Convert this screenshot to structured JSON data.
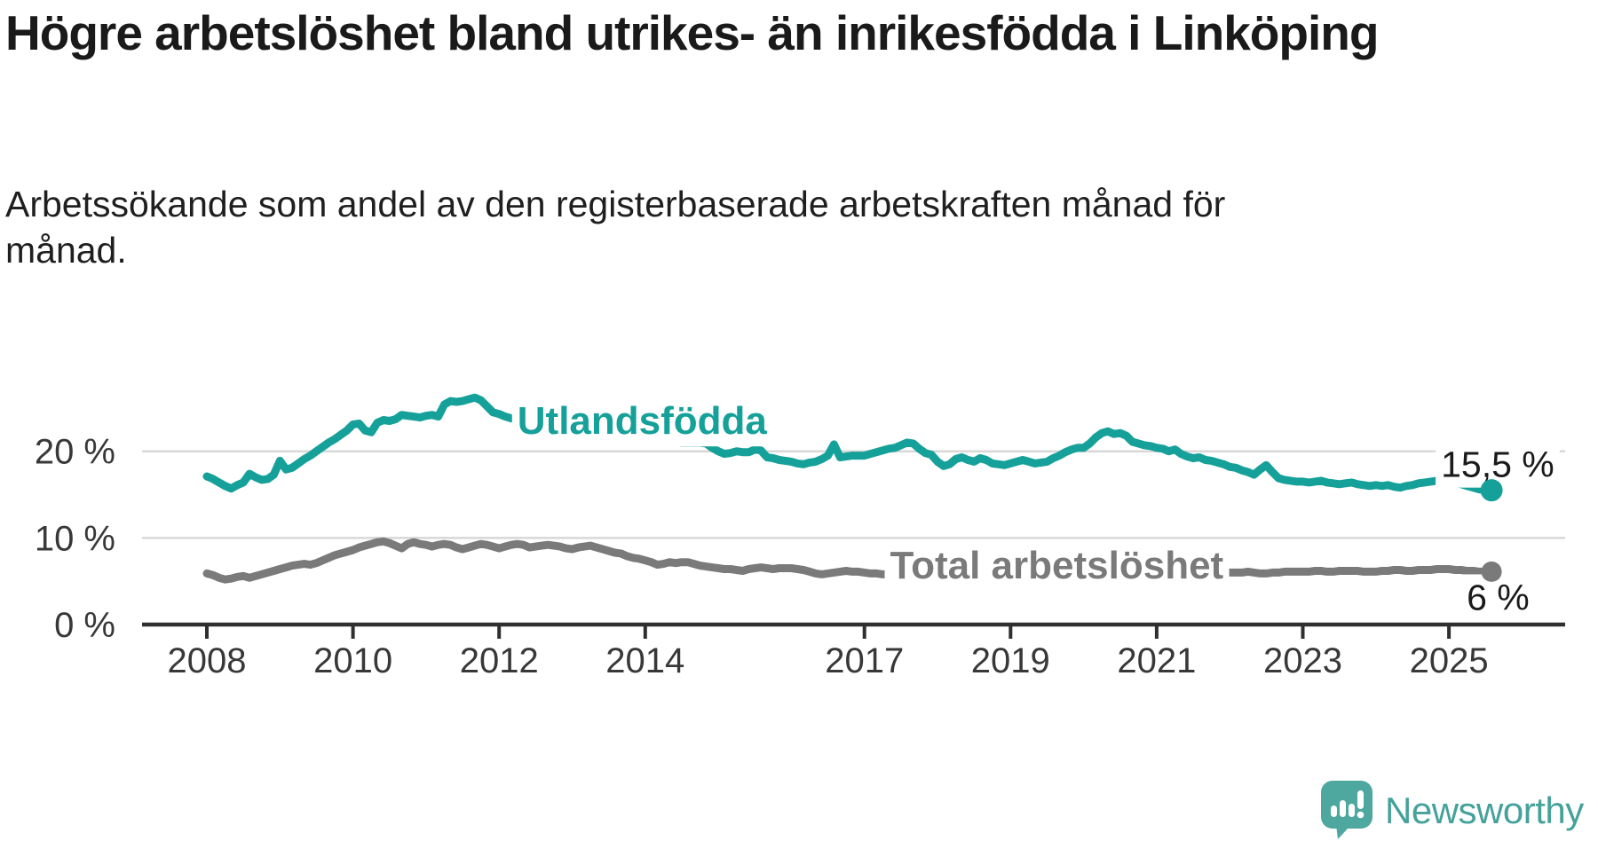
{
  "header": {
    "title": "Högre arbetslöshet bland utrikes- än inrikesfödda i Linköping",
    "subtitle": "Arbetssökande som andel av den registerbaserade arbetskraften månad för månad."
  },
  "footer": {
    "brand": "Newsworthy"
  },
  "colors": {
    "teal": "#15a199",
    "gray": "#7a7a7a",
    "axis": "#2f2f2f",
    "tick_text": "#383838",
    "grid": "#d8d8d8",
    "value_text": "#1a1a1a",
    "brand": "#4fa8a0"
  },
  "chart_data": {
    "type": "line",
    "title": "Högre arbetslöshet bland utrikes- än inrikesfödda i Linköping",
    "subtitle": "Arbetssökande som andel av den registerbaserade arbetskraften månad för månad.",
    "x_unit": "month",
    "start": "2008-01",
    "end": "2025-08",
    "grid": "horizontal",
    "legend_position": "inline-labels",
    "ylim": [
      0,
      27.5
    ],
    "y_ticks": [
      {
        "value": 0,
        "label": "0 %"
      },
      {
        "value": 10,
        "label": "10 %"
      },
      {
        "value": 20,
        "label": "20 %"
      }
    ],
    "x_ticks": [
      {
        "year": 2008,
        "label": "2008"
      },
      {
        "year": 2010,
        "label": "2010"
      },
      {
        "year": 2012,
        "label": "2012"
      },
      {
        "year": 2014,
        "label": "2014"
      },
      {
        "year": 2017,
        "label": "2017"
      },
      {
        "year": 2019,
        "label": "2019"
      },
      {
        "year": 2021,
        "label": "2021"
      },
      {
        "year": 2023,
        "label": "2023"
      },
      {
        "year": 2025,
        "label": "2025"
      }
    ],
    "series": [
      {
        "name": "Utlandsfödda",
        "color_key": "teal",
        "end_label": "15,5 %",
        "end_value": 15.5,
        "label_annotation": {
          "text": "Utlandsfödda",
          "x_year": 2012.25,
          "y_value": 22.0
        },
        "values": [
          17.1,
          16.8,
          16.4,
          16.0,
          15.7,
          16.1,
          16.4,
          17.4,
          17.0,
          16.7,
          16.8,
          17.3,
          18.9,
          17.9,
          18.1,
          18.6,
          19.1,
          19.5,
          20.0,
          20.5,
          21.0,
          21.4,
          21.9,
          22.4,
          23.1,
          23.2,
          22.4,
          22.2,
          23.3,
          23.6,
          23.5,
          23.7,
          24.2,
          24.1,
          24.0,
          23.9,
          24.1,
          24.2,
          24.0,
          25.4,
          25.8,
          25.7,
          25.8,
          26.0,
          26.2,
          25.9,
          25.2,
          24.5,
          24.3,
          24.0,
          23.8,
          23.7,
          23.5,
          23.4,
          23.3,
          23.2,
          23.1,
          23.0,
          22.9,
          22.8,
          22.7,
          22.6,
          22.5,
          22.4,
          22.3,
          22.2,
          22.1,
          22.0,
          21.9,
          21.8,
          21.7,
          21.6,
          21.5,
          21.4,
          21.3,
          21.2,
          21.1,
          21.1,
          21.0,
          21.0,
          21.0,
          21.0,
          20.9,
          20.4,
          20.0,
          19.7,
          19.8,
          20.0,
          19.9,
          19.9,
          20.2,
          20.1,
          19.3,
          19.2,
          19.0,
          18.9,
          18.8,
          18.6,
          18.5,
          18.7,
          18.8,
          19.1,
          19.5,
          20.8,
          19.3,
          19.4,
          19.5,
          19.5,
          19.5,
          19.7,
          19.9,
          20.1,
          20.3,
          20.4,
          20.7,
          21.0,
          20.9,
          20.3,
          19.8,
          19.6,
          18.8,
          18.3,
          18.5,
          19.1,
          19.3,
          19.0,
          18.8,
          19.2,
          19.0,
          18.6,
          18.5,
          18.4,
          18.6,
          18.8,
          19.0,
          18.8,
          18.6,
          18.7,
          18.8,
          19.2,
          19.5,
          19.9,
          20.2,
          20.4,
          20.4,
          20.9,
          21.6,
          22.1,
          22.3,
          22.0,
          22.1,
          21.8,
          21.1,
          20.9,
          20.7,
          20.6,
          20.4,
          20.3,
          20.0,
          20.2,
          19.7,
          19.4,
          19.2,
          19.3,
          19.0,
          18.9,
          18.7,
          18.5,
          18.2,
          18.1,
          17.8,
          17.6,
          17.3,
          17.9,
          18.4,
          17.6,
          16.9,
          16.7,
          16.6,
          16.5,
          16.5,
          16.4,
          16.5,
          16.6,
          16.4,
          16.3,
          16.2,
          16.3,
          16.4,
          16.2,
          16.1,
          16.0,
          16.1,
          16.0,
          16.1,
          15.9,
          15.8,
          16.0,
          16.1,
          16.3,
          16.4,
          16.5,
          16.6,
          16.6,
          16.5,
          16.4,
          16.2,
          16.0,
          15.8,
          15.6,
          15.5,
          15.5
        ]
      },
      {
        "name": "Total arbetslöshet",
        "color_key": "gray",
        "end_label": "6 %",
        "end_value": 6.1,
        "label_annotation": {
          "text": "Total arbetslöshet",
          "x_year": 2017.35,
          "y_value": 5.3
        },
        "values": [
          5.9,
          5.7,
          5.4,
          5.2,
          5.3,
          5.5,
          5.6,
          5.4,
          5.6,
          5.8,
          6.0,
          6.2,
          6.4,
          6.6,
          6.8,
          6.9,
          7.0,
          6.9,
          7.1,
          7.4,
          7.7,
          8.0,
          8.2,
          8.4,
          8.6,
          8.9,
          9.1,
          9.3,
          9.5,
          9.6,
          9.4,
          9.1,
          8.8,
          9.3,
          9.5,
          9.3,
          9.2,
          9.0,
          9.2,
          9.3,
          9.2,
          8.9,
          8.7,
          8.9,
          9.1,
          9.3,
          9.2,
          9.0,
          8.8,
          9.0,
          9.2,
          9.3,
          9.2,
          8.9,
          9.0,
          9.1,
          9.2,
          9.1,
          9.0,
          8.8,
          8.7,
          8.9,
          9.0,
          9.1,
          8.9,
          8.7,
          8.5,
          8.3,
          8.2,
          7.9,
          7.7,
          7.6,
          7.4,
          7.2,
          6.9,
          7.0,
          7.2,
          7.1,
          7.2,
          7.2,
          7.0,
          6.8,
          6.7,
          6.6,
          6.5,
          6.4,
          6.4,
          6.3,
          6.2,
          6.4,
          6.5,
          6.6,
          6.5,
          6.4,
          6.5,
          6.5,
          6.5,
          6.4,
          6.3,
          6.1,
          5.9,
          5.8,
          5.9,
          6.0,
          6.1,
          6.2,
          6.1,
          6.1,
          6.0,
          5.9,
          5.9,
          5.8,
          5.8,
          5.7,
          5.7,
          5.8,
          5.8,
          5.7,
          5.7,
          5.6,
          5.6,
          5.5,
          5.5,
          5.4,
          5.4,
          5.4,
          5.4,
          5.4,
          5.4,
          5.5,
          5.5,
          5.5,
          5.5,
          5.5,
          5.6,
          5.6,
          5.6,
          5.7,
          5.8,
          5.9,
          6.0,
          6.1,
          6.2,
          6.3,
          6.5,
          6.8,
          7.2,
          7.5,
          7.6,
          7.7,
          7.6,
          7.5,
          7.4,
          7.3,
          7.2,
          7.1,
          7.0,
          6.9,
          6.8,
          6.7,
          6.6,
          6.5,
          6.4,
          6.3,
          6.2,
          6.2,
          6.1,
          6.1,
          6.0,
          6.0,
          6.0,
          6.1,
          6.0,
          5.9,
          5.9,
          6.0,
          6.0,
          6.1,
          6.1,
          6.1,
          6.1,
          6.1,
          6.2,
          6.2,
          6.1,
          6.1,
          6.2,
          6.2,
          6.2,
          6.2,
          6.1,
          6.1,
          6.1,
          6.2,
          6.2,
          6.3,
          6.3,
          6.2,
          6.2,
          6.3,
          6.3,
          6.3,
          6.4,
          6.4,
          6.4,
          6.3,
          6.3,
          6.2,
          6.2,
          6.1,
          6.1,
          6.1
        ]
      }
    ]
  }
}
